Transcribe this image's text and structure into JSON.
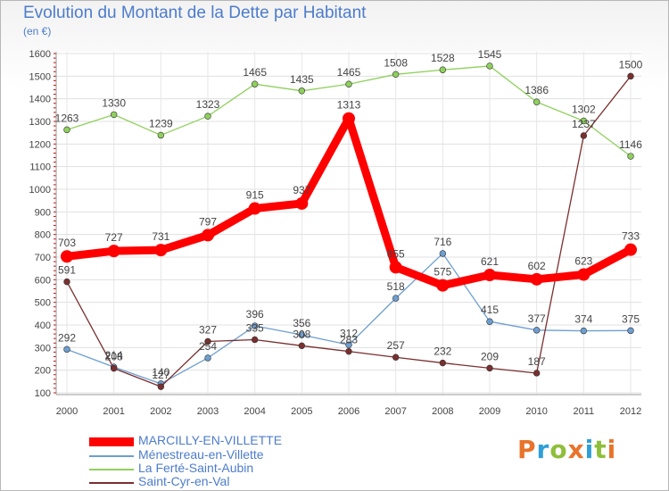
{
  "header": {
    "title": "Evolution du Montant de la Dette par Habitant",
    "subtitle": "(en €)"
  },
  "logo": {
    "text": "Proxiti",
    "colors": [
      "#e8742b",
      "#2f9fd8",
      "#8fbf3a",
      "#e8742b",
      "#2f9fd8",
      "#8fbf3a",
      "#e8742b"
    ]
  },
  "chart_data": {
    "type": "line",
    "x": [
      2000,
      2001,
      2002,
      2003,
      2004,
      2005,
      2006,
      2007,
      2008,
      2009,
      2010,
      2011,
      2012
    ],
    "ylim": [
      100,
      1600
    ],
    "yticks": [
      100,
      200,
      300,
      400,
      500,
      600,
      700,
      800,
      900,
      1000,
      1100,
      1200,
      1300,
      1400,
      1500,
      1600
    ],
    "grid": true,
    "legend_position": "bottom-left",
    "series": [
      {
        "name": "MARCILLY-EN-VILLETTE",
        "color": "#ff0000",
        "values": [
          703,
          727,
          731,
          797,
          915,
          937,
          1313,
          655,
          575,
          621,
          602,
          623,
          733
        ],
        "labels": [
          "703",
          "727",
          "731",
          "797",
          "915",
          "937",
          "1313",
          "655",
          "575",
          "621",
          "602",
          "623",
          "733"
        ]
      },
      {
        "name": "Ménestreau-en-Villette",
        "color": "#6d9fd1",
        "values": [
          292,
          214,
          140,
          254,
          396,
          356,
          312,
          518,
          716,
          415,
          377,
          374,
          375
        ],
        "labels": [
          "292",
          "214",
          "140",
          "254",
          "396",
          "356",
          "312",
          "518",
          "716",
          "415",
          "377",
          "374",
          "375"
        ]
      },
      {
        "name": "La Ferté-Saint-Aubin",
        "color": "#8fd05d",
        "values": [
          1263,
          1330,
          1239,
          1323,
          1465,
          1435,
          1465,
          1508,
          1528,
          1545,
          1386,
          1302,
          1146
        ],
        "labels": [
          "1263",
          "1330",
          "1239",
          "1323",
          "1465",
          "1435",
          "1465",
          "1508",
          "1528",
          "1545",
          "1386",
          "1302",
          "1146"
        ]
      },
      {
        "name": "Saint-Cyr-en-Val",
        "color": "#7a2f2f",
        "values": [
          591,
          208,
          127,
          327,
          335,
          308,
          283,
          257,
          232,
          209,
          187,
          1237,
          1500
        ],
        "labels": [
          "591",
          "208",
          "127",
          "327",
          "335",
          "308",
          "283",
          "257",
          "232",
          "209",
          "187",
          "1237",
          "1500"
        ]
      }
    ]
  }
}
